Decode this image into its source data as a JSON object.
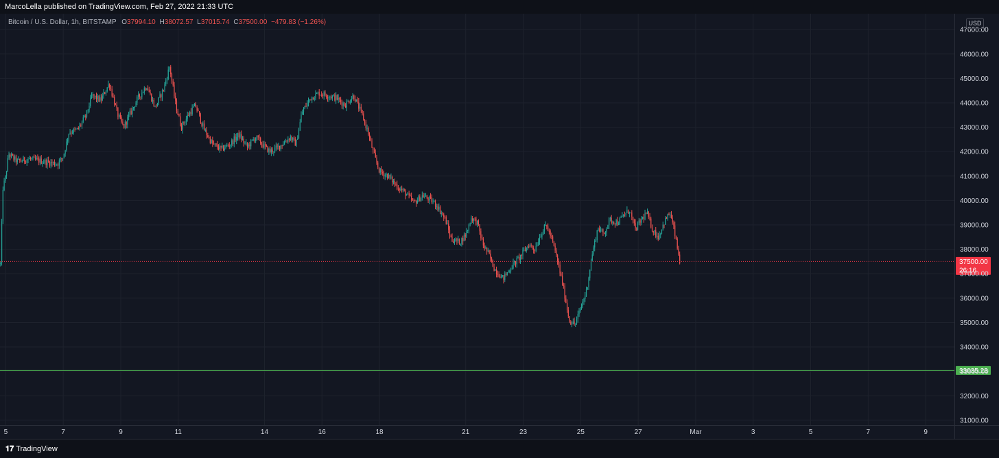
{
  "header": {
    "published": "MarcoLella published on TradingView.com, Feb 27, 2022 21:33 UTC"
  },
  "legend": {
    "symbol": "Bitcoin / U.S. Dollar, 1h, BITSTAMP",
    "open_key": "O",
    "open": "37994.10",
    "high_key": "H",
    "high": "38072.57",
    "low_key": "L",
    "low": "37015.74",
    "close_key": "C",
    "close": "37500.00",
    "change": "−479.83 (−1.26%)"
  },
  "currency": "USD",
  "footer": {
    "brand": "TradingView",
    "brand_icon": "tradingview-logo-icon"
  },
  "colors": {
    "background": "#131722",
    "grid": "#1e222d",
    "up": "#26a69a",
    "down": "#ef5350",
    "support": "#4caf50",
    "last_price": "#f23645"
  },
  "chart_data": {
    "type": "candlestick",
    "x_axis": {
      "ticks": [
        {
          "label": "5",
          "day": 5
        },
        {
          "label": "7",
          "day": 7
        },
        {
          "label": "9",
          "day": 9
        },
        {
          "label": "11",
          "day": 11
        },
        {
          "label": "14",
          "day": 14
        },
        {
          "label": "16",
          "day": 16
        },
        {
          "label": "18",
          "day": 18
        },
        {
          "label": "21",
          "day": 21
        },
        {
          "label": "23",
          "day": 23
        },
        {
          "label": "25",
          "day": 25
        },
        {
          "label": "27",
          "day": 27
        },
        {
          "label": "Mar",
          "day": 29
        },
        {
          "label": "3",
          "day": 31
        },
        {
          "label": "5",
          "day": 33
        },
        {
          "label": "7",
          "day": 35
        },
        {
          "label": "9",
          "day": 37
        }
      ],
      "range_days": [
        4.8,
        38.0
      ]
    },
    "y_axis": {
      "ticks": [
        "47000.00",
        "46000.00",
        "45000.00",
        "44000.00",
        "43000.00",
        "42000.00",
        "41000.00",
        "40000.00",
        "39000.00",
        "38000.00",
        "37000.00",
        "36000.00",
        "35000.00",
        "34000.00",
        "33000.00",
        "32000.00",
        "31000.00"
      ],
      "range": [
        30800,
        47650
      ]
    },
    "price_path": [
      [
        4.82,
        37400
      ],
      [
        4.9,
        40500
      ],
      [
        5.0,
        41000
      ],
      [
        5.1,
        41900
      ],
      [
        5.4,
        41600
      ],
      [
        5.8,
        41700
      ],
      [
        6.3,
        41600
      ],
      [
        6.8,
        41500
      ],
      [
        7.0,
        41800
      ],
      [
        7.2,
        42800
      ],
      [
        7.5,
        42900
      ],
      [
        7.8,
        43500
      ],
      [
        8.0,
        44300
      ],
      [
        8.3,
        44100
      ],
      [
        8.6,
        44800
      ],
      [
        8.9,
        43500
      ],
      [
        9.1,
        43000
      ],
      [
        9.3,
        43500
      ],
      [
        9.6,
        44200
      ],
      [
        9.9,
        44700
      ],
      [
        10.2,
        43800
      ],
      [
        10.5,
        44600
      ],
      [
        10.7,
        45500
      ],
      [
        10.9,
        44000
      ],
      [
        11.1,
        43000
      ],
      [
        11.4,
        43600
      ],
      [
        11.6,
        43900
      ],
      [
        11.9,
        42900
      ],
      [
        12.2,
        42300
      ],
      [
        12.5,
        42100
      ],
      [
        12.8,
        42300
      ],
      [
        13.1,
        42700
      ],
      [
        13.4,
        42200
      ],
      [
        13.7,
        42600
      ],
      [
        14.0,
        42200
      ],
      [
        14.2,
        42000
      ],
      [
        14.5,
        42200
      ],
      [
        14.9,
        42600
      ],
      [
        15.1,
        42300
      ],
      [
        15.3,
        43600
      ],
      [
        15.6,
        44200
      ],
      [
        15.9,
        44400
      ],
      [
        16.2,
        44300
      ],
      [
        16.5,
        44200
      ],
      [
        16.8,
        43900
      ],
      [
        17.1,
        44300
      ],
      [
        17.4,
        43500
      ],
      [
        17.6,
        42800
      ],
      [
        17.8,
        41900
      ],
      [
        18.0,
        41200
      ],
      [
        18.3,
        41000
      ],
      [
        18.6,
        40600
      ],
      [
        18.9,
        40300
      ],
      [
        19.2,
        39900
      ],
      [
        19.5,
        40200
      ],
      [
        19.8,
        40000
      ],
      [
        20.0,
        39800
      ],
      [
        20.3,
        39200
      ],
      [
        20.5,
        38400
      ],
      [
        20.8,
        38300
      ],
      [
        21.0,
        38600
      ],
      [
        21.2,
        39300
      ],
      [
        21.4,
        39100
      ],
      [
        21.6,
        38200
      ],
      [
        21.8,
        37800
      ],
      [
        22.0,
        37200
      ],
      [
        22.3,
        36800
      ],
      [
        22.6,
        37300
      ],
      [
        22.9,
        37700
      ],
      [
        23.2,
        38200
      ],
      [
        23.4,
        38000
      ],
      [
        23.6,
        38600
      ],
      [
        23.8,
        39000
      ],
      [
        24.0,
        38400
      ],
      [
        24.2,
        37500
      ],
      [
        24.4,
        36400
      ],
      [
        24.6,
        35100
      ],
      [
        24.8,
        34900
      ],
      [
        25.0,
        35600
      ],
      [
        25.2,
        36300
      ],
      [
        25.4,
        37800
      ],
      [
        25.6,
        38900
      ],
      [
        25.8,
        38600
      ],
      [
        26.0,
        39200
      ],
      [
        26.3,
        39100
      ],
      [
        26.5,
        39400
      ],
      [
        26.7,
        39600
      ],
      [
        26.9,
        38800
      ],
      [
        27.1,
        39200
      ],
      [
        27.3,
        39500
      ],
      [
        27.5,
        38800
      ],
      [
        27.7,
        38500
      ],
      [
        27.9,
        39100
      ],
      [
        28.1,
        39500
      ],
      [
        28.25,
        38800
      ],
      [
        28.35,
        38100
      ],
      [
        28.45,
        37500
      ]
    ],
    "levels": [
      {
        "label": "37500.00",
        "price": 37500,
        "countdown": "26:16",
        "style": "dotted",
        "color": "#f23645"
      },
      {
        "label": "33035.23",
        "price": 33035.23,
        "style": "solid",
        "color": "#4caf50"
      }
    ],
    "grid": true
  }
}
